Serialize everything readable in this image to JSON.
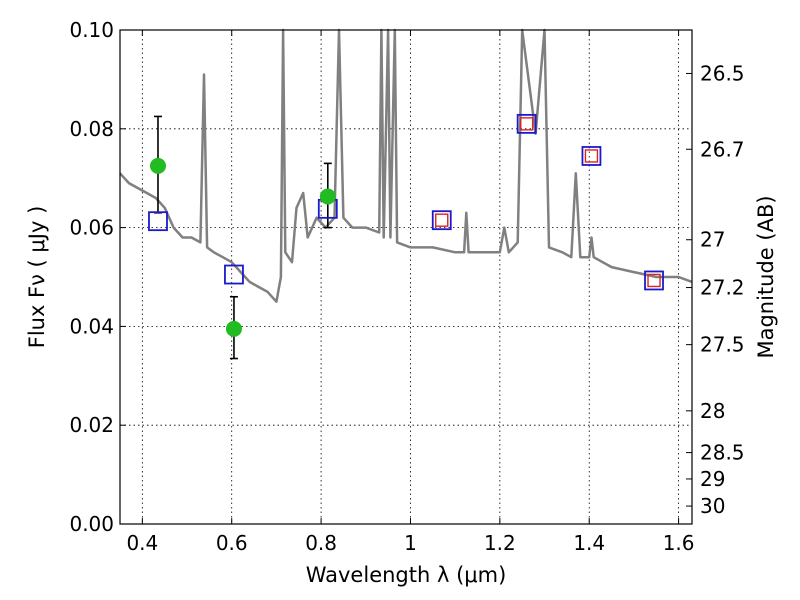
{
  "chart_data": {
    "type": "scatter",
    "xlabel": "Wavelength  λ (μm)",
    "ylabel": "Flux  Fν ( μJy )",
    "ylabel_right": "Magnitude (AB)",
    "xlim": [
      0.35,
      1.63
    ],
    "ylim": [
      0.0,
      0.1
    ],
    "x_ticks": [
      0.4,
      0.6,
      0.8,
      1.0,
      1.2,
      1.4,
      1.6
    ],
    "x_tick_labels": [
      "0.4",
      "0.6",
      "0.8",
      "1",
      "1.2",
      "1.4",
      "1.6"
    ],
    "y_ticks": [
      0.0,
      0.02,
      0.04,
      0.06,
      0.08,
      0.1
    ],
    "y_tick_labels": [
      "0.00",
      "0.02",
      "0.04",
      "0.06",
      "0.08",
      "0.10"
    ],
    "right_ticks": [
      26.5,
      26.7,
      27,
      27.2,
      27.5,
      28,
      28.5,
      29,
      30
    ],
    "right_tick_labels": [
      "26.5",
      "26.7",
      "27",
      "27.2",
      "27.5",
      "28",
      "28.5",
      "29",
      "30"
    ],
    "grid": true,
    "colors": {
      "spectrum": "#808080",
      "observed": "#22bb22",
      "model_box": "#1a1acc",
      "fit_box": "#dd2222",
      "errorbar": "#000000"
    },
    "series": [
      {
        "type": "line",
        "points": [
          [
            0.35,
            0.071
          ],
          [
            0.37,
            0.069
          ],
          [
            0.39,
            0.068
          ],
          [
            0.41,
            0.067
          ],
          [
            0.43,
            0.066
          ],
          [
            0.45,
            0.064
          ],
          [
            0.47,
            0.06
          ],
          [
            0.49,
            0.058
          ],
          [
            0.51,
            0.058
          ],
          [
            0.53,
            0.057
          ],
          [
            0.538,
            0.091
          ],
          [
            0.545,
            0.056
          ],
          [
            0.56,
            0.055
          ],
          [
            0.58,
            0.054
          ],
          [
            0.6,
            0.053
          ],
          [
            0.62,
            0.051
          ],
          [
            0.64,
            0.049
          ],
          [
            0.66,
            0.048
          ],
          [
            0.68,
            0.047
          ],
          [
            0.7,
            0.045
          ],
          [
            0.71,
            0.05
          ],
          [
            0.715,
            0.1
          ],
          [
            0.72,
            0.055
          ],
          [
            0.735,
            0.053
          ],
          [
            0.745,
            0.064
          ],
          [
            0.76,
            0.067
          ],
          [
            0.77,
            0.058
          ],
          [
            0.79,
            0.062
          ],
          [
            0.81,
            0.06
          ],
          [
            0.83,
            0.062
          ],
          [
            0.84,
            0.1
          ],
          [
            0.85,
            0.062
          ],
          [
            0.87,
            0.06
          ],
          [
            0.9,
            0.06
          ],
          [
            0.93,
            0.059
          ],
          [
            0.935,
            0.1
          ],
          [
            0.94,
            0.058
          ],
          [
            0.95,
            0.1
          ],
          [
            0.955,
            0.058
          ],
          [
            0.965,
            0.1
          ],
          [
            0.97,
            0.057
          ],
          [
            1.0,
            0.056
          ],
          [
            1.05,
            0.056
          ],
          [
            1.1,
            0.055
          ],
          [
            1.12,
            0.055
          ],
          [
            1.125,
            0.063
          ],
          [
            1.13,
            0.055
          ],
          [
            1.18,
            0.055
          ],
          [
            1.2,
            0.055
          ],
          [
            1.21,
            0.06
          ],
          [
            1.22,
            0.055
          ],
          [
            1.24,
            0.057
          ],
          [
            1.25,
            0.1
          ],
          [
            1.28,
            0.079
          ],
          [
            1.3,
            0.1
          ],
          [
            1.31,
            0.056
          ],
          [
            1.34,
            0.055
          ],
          [
            1.36,
            0.054
          ],
          [
            1.37,
            0.071
          ],
          [
            1.38,
            0.054
          ],
          [
            1.4,
            0.054
          ],
          [
            1.405,
            0.058
          ],
          [
            1.41,
            0.054
          ],
          [
            1.45,
            0.052
          ],
          [
            1.5,
            0.051
          ],
          [
            1.55,
            0.05
          ],
          [
            1.6,
            0.05
          ],
          [
            1.63,
            0.049
          ]
        ]
      },
      {
        "name": "observed",
        "type": "errorbar",
        "points": [
          {
            "x": 0.435,
            "y": 0.0725,
            "ylo": 0.063,
            "yhi": 0.0825
          },
          {
            "x": 0.605,
            "y": 0.0395,
            "ylo": 0.0335,
            "yhi": 0.046
          },
          {
            "x": 0.815,
            "y": 0.0663,
            "ylo": 0.06,
            "yhi": 0.073
          }
        ]
      },
      {
        "type": "scatter",
        "marker": "open-square",
        "points": [
          {
            "x": 0.435,
            "y": 0.0613
          },
          {
            "x": 0.605,
            "y": 0.0505
          },
          {
            "x": 0.815,
            "y": 0.0638
          },
          {
            "x": 1.07,
            "y": 0.0615
          },
          {
            "x": 1.26,
            "y": 0.081
          },
          {
            "x": 1.405,
            "y": 0.0745
          },
          {
            "x": 1.545,
            "y": 0.0493
          }
        ]
      },
      {
        "type": "scatter",
        "marker": "open-square",
        "points": [
          {
            "x": 1.07,
            "y": 0.0615
          },
          {
            "x": 1.26,
            "y": 0.081
          },
          {
            "x": 1.405,
            "y": 0.0745
          },
          {
            "x": 1.545,
            "y": 0.0493
          }
        ]
      }
    ]
  }
}
